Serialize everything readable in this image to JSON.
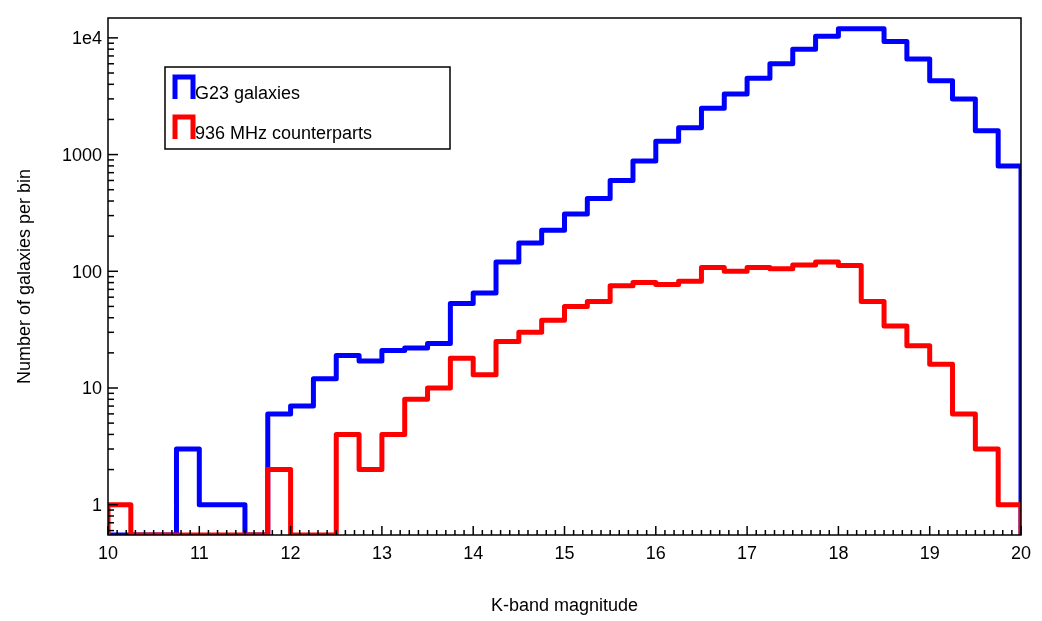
{
  "chart_data": {
    "type": "histogram",
    "xlabel": "K-band magnitude",
    "ylabel": "Number of galaxies per bin",
    "bins": [
      10,
      10.25,
      10.5,
      10.75,
      11,
      11.25,
      11.5,
      11.75,
      12,
      12.25,
      12.5,
      12.75,
      13,
      13.25,
      13.5,
      13.75,
      14,
      14.25,
      14.5,
      14.75,
      15,
      15.25,
      15.5,
      15.75,
      16,
      16.25,
      16.5,
      16.75,
      17,
      17.25,
      17.5,
      17.75,
      18,
      18.25,
      18.5,
      18.75,
      19,
      19.25,
      19.5,
      19.75,
      20
    ],
    "series": [
      {
        "name": "G23 galaxies",
        "color": "#0000ff",
        "values": [
          null,
          null,
          null,
          3,
          1,
          1,
          null,
          6,
          7,
          12,
          19,
          17,
          21,
          22,
          24,
          53,
          65,
          120,
          175,
          225,
          310,
          420,
          600,
          880,
          1300,
          1700,
          2500,
          3300,
          4500,
          6000,
          8000,
          10300,
          12000,
          12000,
          9300,
          6600,
          4300,
          3000,
          1600,
          800
        ]
      },
      {
        "name": "936 MHz counterparts",
        "color": "#ff0000",
        "values": [
          1,
          null,
          null,
          null,
          null,
          null,
          null,
          2,
          null,
          null,
          4,
          2,
          4,
          8,
          10,
          18,
          13,
          25,
          30,
          38,
          50,
          55,
          75,
          80,
          77,
          82,
          108,
          100,
          108,
          105,
          113,
          120,
          112,
          55,
          34,
          23,
          16,
          6,
          3,
          1
        ]
      }
    ],
    "log": "y",
    "legend": "top left",
    "xlim": [
      10,
      20
    ],
    "ylim": [
      0.55,
      14800
    ],
    "xticks": [
      10,
      11,
      12,
      13,
      14,
      15,
      16,
      17,
      18,
      19,
      20,
      {
        "value": 10.1,
        "label": null
      },
      {
        "value": 10.2,
        "label": null
      },
      {
        "value": 10.3,
        "label": null
      },
      {
        "value": 10.4,
        "label": null
      },
      {
        "value": 10.5,
        "label": null
      },
      {
        "value": 10.6,
        "label": null
      },
      {
        "value": 10.7,
        "label": null
      },
      {
        "value": 10.8,
        "label": null
      },
      {
        "value": 10.9,
        "label": null
      },
      {
        "value": 11.1,
        "label": null
      },
      {
        "value": 11.2,
        "label": null
      },
      {
        "value": 11.3,
        "label": null
      },
      {
        "value": 11.4,
        "label": null
      },
      {
        "value": 11.5,
        "label": null
      },
      {
        "value": 11.6,
        "label": null
      },
      {
        "value": 11.7,
        "label": null
      },
      {
        "value": 11.8,
        "label": null
      },
      {
        "value": 11.9,
        "label": null
      },
      {
        "value": 12.1,
        "label": null
      },
      {
        "value": 12.2,
        "label": null
      },
      {
        "value": 12.3,
        "label": null
      },
      {
        "value": 12.4,
        "label": null
      },
      {
        "value": 12.5,
        "label": null
      },
      {
        "value": 12.6,
        "label": null
      },
      {
        "value": 12.7,
        "label": null
      },
      {
        "value": 12.8,
        "label": null
      },
      {
        "value": 12.9,
        "label": null
      },
      {
        "value": 13.1,
        "label": null
      },
      {
        "value": 13.2,
        "label": null
      },
      {
        "value": 13.3,
        "label": null
      },
      {
        "value": 13.4,
        "label": null
      },
      {
        "value": 13.5,
        "label": null
      },
      {
        "value": 13.6,
        "label": null
      },
      {
        "value": 13.7,
        "label": null
      },
      {
        "value": 13.8,
        "label": null
      },
      {
        "value": 13.9,
        "label": null
      },
      {
        "value": 14.1,
        "label": null
      },
      {
        "value": 14.2,
        "label": null
      },
      {
        "value": 14.3,
        "label": null
      },
      {
        "value": 14.4,
        "label": null
      },
      {
        "value": 14.5,
        "label": null
      },
      {
        "value": 14.6,
        "label": null
      },
      {
        "value": 14.7,
        "label": null
      },
      {
        "value": 14.8,
        "label": null
      },
      {
        "value": 14.9,
        "label": null
      },
      {
        "value": 15.1,
        "label": null
      },
      {
        "value": 15.2,
        "label": null
      },
      {
        "value": 15.3,
        "label": null
      },
      {
        "value": 15.4,
        "label": null
      },
      {
        "value": 15.5,
        "label": null
      },
      {
        "value": 15.6,
        "label": null
      },
      {
        "value": 15.7,
        "label": null
      },
      {
        "value": 15.8,
        "label": null
      },
      {
        "value": 15.9,
        "label": null
      },
      {
        "value": 16.1,
        "label": null
      },
      {
        "value": 16.2,
        "label": null
      },
      {
        "value": 16.3,
        "label": null
      },
      {
        "value": 16.4,
        "label": null
      },
      {
        "value": 16.5,
        "label": null
      },
      {
        "value": 16.6,
        "label": null
      },
      {
        "value": 16.7,
        "label": null
      },
      {
        "value": 16.8,
        "label": null
      },
      {
        "value": 16.9,
        "label": null
      },
      {
        "value": 17.1,
        "label": null
      },
      {
        "value": 17.2,
        "label": null
      },
      {
        "value": 17.3,
        "label": null
      },
      {
        "value": 17.4,
        "label": null
      },
      {
        "value": 17.5,
        "label": null
      },
      {
        "value": 17.6,
        "label": null
      },
      {
        "value": 17.7,
        "label": null
      },
      {
        "value": 17.8,
        "label": null
      },
      {
        "value": 17.9,
        "label": null
      },
      {
        "value": 18.1,
        "label": null
      },
      {
        "value": 18.2,
        "label": null
      },
      {
        "value": 18.3,
        "label": null
      },
      {
        "value": 18.4,
        "label": null
      },
      {
        "value": 18.5,
        "label": null
      },
      {
        "value": 18.6,
        "label": null
      },
      {
        "value": 18.7,
        "label": null
      },
      {
        "value": 18.8,
        "label": null
      },
      {
        "value": 18.9,
        "label": null
      },
      {
        "value": 19.1,
        "label": null
      },
      {
        "value": 19.2,
        "label": null
      },
      {
        "value": 19.3,
        "label": null
      },
      {
        "value": 19.4,
        "label": null
      },
      {
        "value": 19.5,
        "label": null
      },
      {
        "value": 19.6,
        "label": null
      },
      {
        "value": 19.7,
        "label": null
      },
      {
        "value": 19.8,
        "label": null
      },
      {
        "value": 19.9,
        "label": null
      }
    ],
    "yticks": [
      1,
      10,
      100,
      1000,
      {
        "value": 10000,
        "label": "1e4"
      },
      {
        "value": 0.6,
        "label": null
      },
      {
        "value": 0.7,
        "label": null
      },
      {
        "value": 0.8,
        "label": null
      },
      {
        "value": 0.9,
        "label": null
      },
      {
        "value": 2,
        "label": null
      },
      {
        "value": 3,
        "label": null
      },
      {
        "value": 4,
        "label": null
      },
      {
        "value": 5,
        "label": null
      },
      {
        "value": 6,
        "label": null
      },
      {
        "value": 7,
        "label": null
      },
      {
        "value": 8,
        "label": null
      },
      {
        "value": 9,
        "label": null
      },
      {
        "value": 20,
        "label": null
      },
      {
        "value": 30,
        "label": null
      },
      {
        "value": 40,
        "label": null
      },
      {
        "value": 50,
        "label": null
      },
      {
        "value": 60,
        "label": null
      },
      {
        "value": 70,
        "label": null
      },
      {
        "value": 80,
        "label": null
      },
      {
        "value": 90,
        "label": null
      },
      {
        "value": 200,
        "label": null
      },
      {
        "value": 300,
        "label": null
      },
      {
        "value": 400,
        "label": null
      },
      {
        "value": 500,
        "label": null
      },
      {
        "value": 600,
        "label": null
      },
      {
        "value": 700,
        "label": null
      },
      {
        "value": 800,
        "label": null
      },
      {
        "value": 900,
        "label": null
      },
      {
        "value": 2000,
        "label": null
      },
      {
        "value": 3000,
        "label": null
      },
      {
        "value": 4000,
        "label": null
      },
      {
        "value": 5000,
        "label": null
      },
      {
        "value": 6000,
        "label": null
      },
      {
        "value": 7000,
        "label": null
      },
      {
        "value": 8000,
        "label": null
      },
      {
        "value": 9000,
        "label": null
      }
    ]
  }
}
